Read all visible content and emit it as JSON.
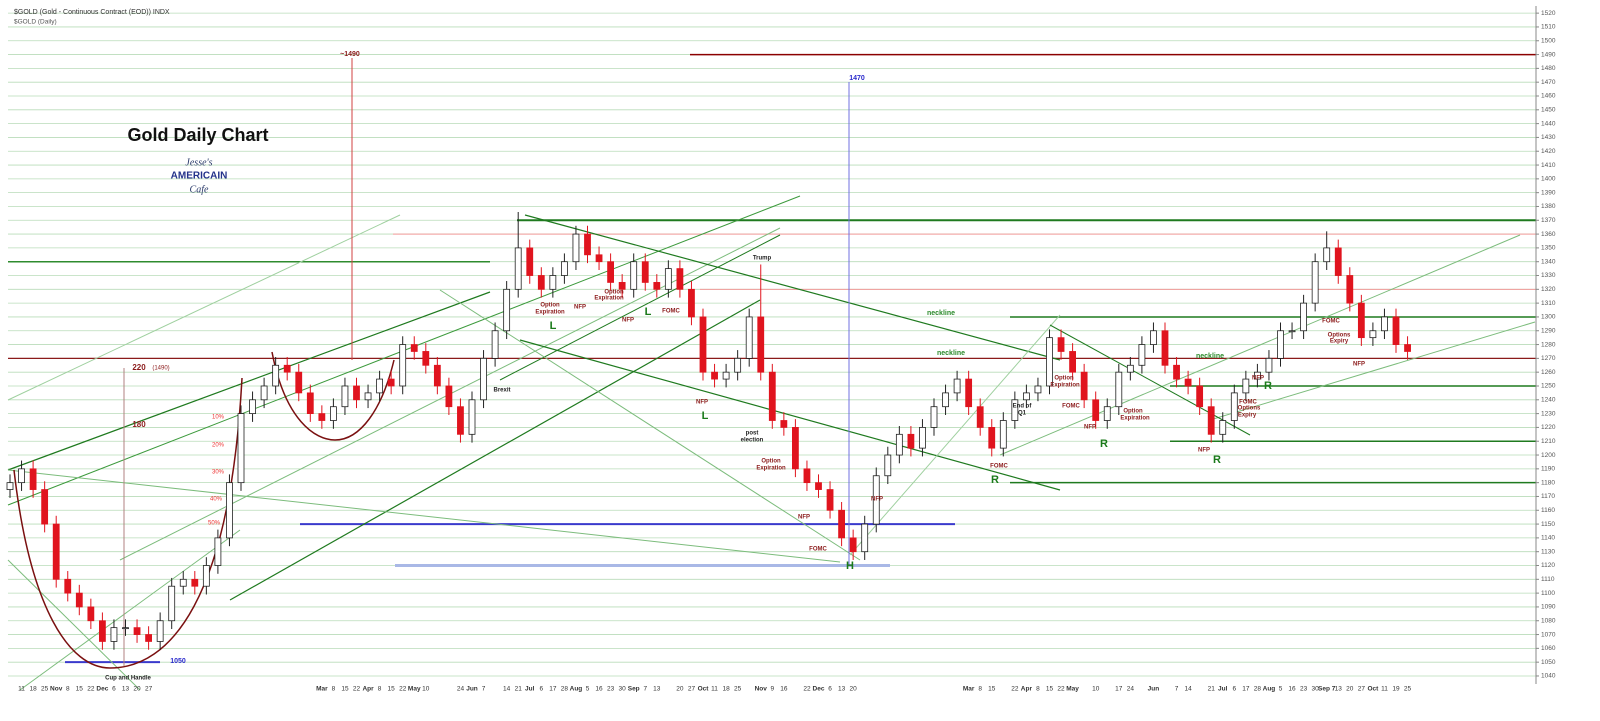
{
  "chart_data": {
    "type": "candlestick",
    "title": "Gold Daily Chart",
    "header": [
      "$GOLD (Gold - Continuous Contract (EOD)) INDX",
      "$GOLD (Daily)"
    ],
    "logo": [
      "Jesse's",
      "AMERICAIN",
      "Cafe"
    ],
    "categories": [
      null,
      "11",
      "18",
      "25",
      "Nov",
      "8",
      "15",
      "22",
      "Dec",
      "6",
      "13",
      "20",
      "27",
      null,
      null,
      null,
      null,
      null,
      null,
      null,
      null,
      null,
      null,
      null,
      null,
      null,
      null,
      "Mar",
      "8",
      "15",
      "22",
      "Apr",
      "8",
      "15",
      "22",
      "May",
      "10",
      null,
      null,
      "24",
      "Jun",
      "7",
      null,
      "14",
      "21",
      "Jul",
      "6",
      "17",
      "28",
      "Aug",
      "5",
      "16",
      "23",
      "30",
      "Sep",
      "7",
      "13",
      null,
      "20",
      "27",
      "Oct",
      "11",
      "18",
      "25",
      null,
      "Nov",
      "9",
      "16",
      null,
      "22",
      "Dec",
      "6",
      "13",
      "20",
      null,
      null,
      null,
      null,
      null,
      null,
      null,
      null,
      null,
      "Mar",
      "8",
      "15",
      null,
      "22",
      "Apr",
      "8",
      "15",
      "22",
      "May",
      null,
      "10",
      null,
      "17",
      "24",
      null,
      "Jun",
      null,
      "7",
      "14",
      null,
      "21",
      "Jul",
      "6",
      "17",
      "28",
      "Aug",
      "5",
      "16",
      "23",
      "30",
      "Sep 7",
      "13",
      "20",
      "27",
      "Oct",
      "11",
      "19",
      "25"
    ],
    "open": [
      1175,
      1180,
      1190,
      1175,
      1150,
      1110,
      1100,
      1090,
      1080,
      1065,
      1075,
      1075,
      1070,
      1065,
      1080,
      1105,
      1110,
      1105,
      1120,
      1140,
      1180,
      1230,
      1240,
      1250,
      1265,
      1260,
      1245,
      1230,
      1225,
      1235,
      1250,
      1240,
      1245,
      1255,
      1250,
      1280,
      1275,
      1265,
      1250,
      1235,
      1215,
      1240,
      1270,
      1290,
      1320,
      1350,
      1330,
      1320,
      1330,
      1340,
      1360,
      1345,
      1340,
      1325,
      1320,
      1340,
      1325,
      1320,
      1335,
      1320,
      1300,
      1260,
      1255,
      1260,
      1270,
      1300,
      1260,
      1225,
      1220,
      1190,
      1180,
      1175,
      1160,
      1140,
      1130,
      1150,
      1185,
      1200,
      1215,
      1205,
      1220,
      1235,
      1245,
      1255,
      1235,
      1220,
      1205,
      1225,
      1240,
      1245,
      1250,
      1285,
      1275,
      1260,
      1240,
      1225,
      1235,
      1260,
      1265,
      1280,
      1290,
      1265,
      1255,
      1250,
      1235,
      1215,
      1225,
      1245,
      1255,
      1260,
      1270,
      1290,
      1290,
      1310,
      1340,
      1350,
      1330,
      1310,
      1285,
      1290,
      1300,
      1280
    ],
    "high": [
      1186,
      1196,
      1196,
      1181,
      1156,
      1116,
      1106,
      1096,
      1086,
      1081,
      1081,
      1081,
      1076,
      1086,
      1111,
      1116,
      1116,
      1126,
      1146,
      1186,
      1236,
      1246,
      1256,
      1271,
      1271,
      1266,
      1251,
      1236,
      1241,
      1256,
      1256,
      1251,
      1261,
      1261,
      1286,
      1286,
      1281,
      1271,
      1256,
      1241,
      1246,
      1276,
      1296,
      1326,
      1376,
      1356,
      1336,
      1336,
      1346,
      1366,
      1366,
      1351,
      1346,
      1331,
      1346,
      1346,
      1331,
      1341,
      1341,
      1326,
      1306,
      1266,
      1266,
      1276,
      1306,
      1338,
      1266,
      1231,
      1226,
      1196,
      1186,
      1181,
      1166,
      1146,
      1156,
      1191,
      1206,
      1221,
      1221,
      1226,
      1241,
      1251,
      1261,
      1261,
      1241,
      1226,
      1231,
      1246,
      1251,
      1256,
      1291,
      1291,
      1281,
      1266,
      1246,
      1241,
      1266,
      1271,
      1286,
      1296,
      1296,
      1271,
      1261,
      1256,
      1241,
      1231,
      1251,
      1261,
      1266,
      1276,
      1296,
      1296,
      1316,
      1346,
      1362,
      1356,
      1336,
      1316,
      1296,
      1306,
      1306,
      1286
    ],
    "low": [
      1169,
      1174,
      1169,
      1144,
      1104,
      1094,
      1084,
      1074,
      1059,
      1059,
      1069,
      1064,
      1059,
      1059,
      1074,
      1099,
      1099,
      1099,
      1114,
      1134,
      1174,
      1224,
      1234,
      1244,
      1254,
      1239,
      1224,
      1219,
      1219,
      1229,
      1234,
      1234,
      1239,
      1244,
      1244,
      1269,
      1259,
      1244,
      1229,
      1209,
      1209,
      1234,
      1264,
      1284,
      1314,
      1324,
      1314,
      1314,
      1324,
      1334,
      1339,
      1334,
      1319,
      1314,
      1314,
      1319,
      1314,
      1314,
      1314,
      1294,
      1254,
      1249,
      1249,
      1254,
      1264,
      1254,
      1219,
      1214,
      1184,
      1174,
      1169,
      1154,
      1134,
      1124,
      1124,
      1144,
      1179,
      1194,
      1199,
      1199,
      1214,
      1229,
      1239,
      1229,
      1214,
      1199,
      1199,
      1219,
      1234,
      1239,
      1244,
      1269,
      1254,
      1234,
      1219,
      1219,
      1229,
      1254,
      1259,
      1274,
      1259,
      1249,
      1244,
      1229,
      1209,
      1209,
      1219,
      1239,
      1249,
      1254,
      1264,
      1284,
      1284,
      1304,
      1334,
      1324,
      1304,
      1279,
      1279,
      1284,
      1274,
      1269
    ],
    "close": [
      1180,
      1190,
      1175,
      1150,
      1110,
      1100,
      1090,
      1080,
      1065,
      1075,
      1075,
      1070,
      1065,
      1080,
      1105,
      1110,
      1105,
      1120,
      1140,
      1180,
      1230,
      1240,
      1250,
      1265,
      1260,
      1245,
      1230,
      1225,
      1235,
      1250,
      1240,
      1245,
      1255,
      1250,
      1280,
      1275,
      1265,
      1250,
      1235,
      1215,
      1240,
      1270,
      1290,
      1320,
      1350,
      1330,
      1320,
      1330,
      1340,
      1360,
      1345,
      1340,
      1325,
      1320,
      1340,
      1325,
      1320,
      1335,
      1320,
      1300,
      1260,
      1255,
      1260,
      1270,
      1300,
      1260,
      1225,
      1220,
      1190,
      1180,
      1175,
      1160,
      1140,
      1130,
      1150,
      1185,
      1200,
      1215,
      1205,
      1220,
      1235,
      1245,
      1255,
      1235,
      1220,
      1205,
      1225,
      1240,
      1245,
      1250,
      1285,
      1275,
      1260,
      1240,
      1225,
      1235,
      1260,
      1265,
      1280,
      1290,
      1265,
      1255,
      1250,
      1235,
      1215,
      1225,
      1245,
      1255,
      1260,
      1270,
      1290,
      1290,
      1310,
      1340,
      1350,
      1330,
      1310,
      1285,
      1290,
      1300,
      1280,
      1275
    ],
    "up_color": "#ffffff",
    "down_color": "#e0141e",
    "ylim": [
      1036,
      1523
    ],
    "yticks": [
      1040,
      1050,
      1060,
      1070,
      1080,
      1090,
      1100,
      1110,
      1120,
      1130,
      1140,
      1150,
      1160,
      1170,
      1180,
      1190,
      1200,
      1210,
      1220,
      1230,
      1240,
      1250,
      1260,
      1270,
      1280,
      1290,
      1300,
      1310,
      1320,
      1330,
      1340,
      1350,
      1360,
      1370,
      1380,
      1390,
      1400,
      1410,
      1420,
      1430,
      1440,
      1450,
      1460,
      1470,
      1480,
      1490,
      1500,
      1510,
      1520
    ],
    "grid": true,
    "levels": [
      {
        "value": 1490,
        "color": "#8b0000"
      },
      {
        "value": 1370,
        "color": "#1f7a1f"
      },
      {
        "value": 1360,
        "color": "#f29a9a"
      },
      {
        "value": 1340,
        "color": "#2e8b2e"
      },
      {
        "value": 1320,
        "color": "#f29a9a"
      },
      {
        "value": 1300,
        "color": "#1f7a1f"
      },
      {
        "value": 1270,
        "color": "#8b1a1a"
      },
      {
        "value": 1250,
        "color": "#1f7a1f"
      },
      {
        "value": 1210,
        "color": "#1f7a1f"
      },
      {
        "value": 1180,
        "color": "#1f7a1f"
      },
      {
        "value": 1150,
        "color": "#3a3acc"
      },
      {
        "value": 1120,
        "color": "#a9b8e6"
      },
      {
        "value": 1050,
        "color": "#3a3acc"
      }
    ],
    "annotations": [
      "~1490",
      "1470",
      "220",
      "(1490)",
      "180",
      "10%",
      "20%",
      "30%",
      "40%",
      "50%",
      "1050",
      "Cup and Handle",
      "Brexit",
      "Option",
      "Expiration",
      "NFP",
      "Option",
      "Expiration",
      "NFP",
      "FOMC",
      "L",
      "L",
      "Trump",
      "NFP",
      "L",
      "post",
      "election",
      "Option",
      "Expiration",
      "NFP",
      "FOMC",
      "H",
      "NFP",
      "neckline",
      "neckline",
      "FOMC",
      "R",
      "End of",
      "Q1",
      "Option",
      "Expiration",
      "FOMC",
      "NFP",
      "R",
      "Option",
      "Expiration",
      "neckline",
      "NFP",
      "R",
      "FOMC",
      "Options",
      "Expiry",
      "NFP",
      "R",
      "FOMC",
      "Options",
      "Expiry",
      "NFP"
    ]
  }
}
